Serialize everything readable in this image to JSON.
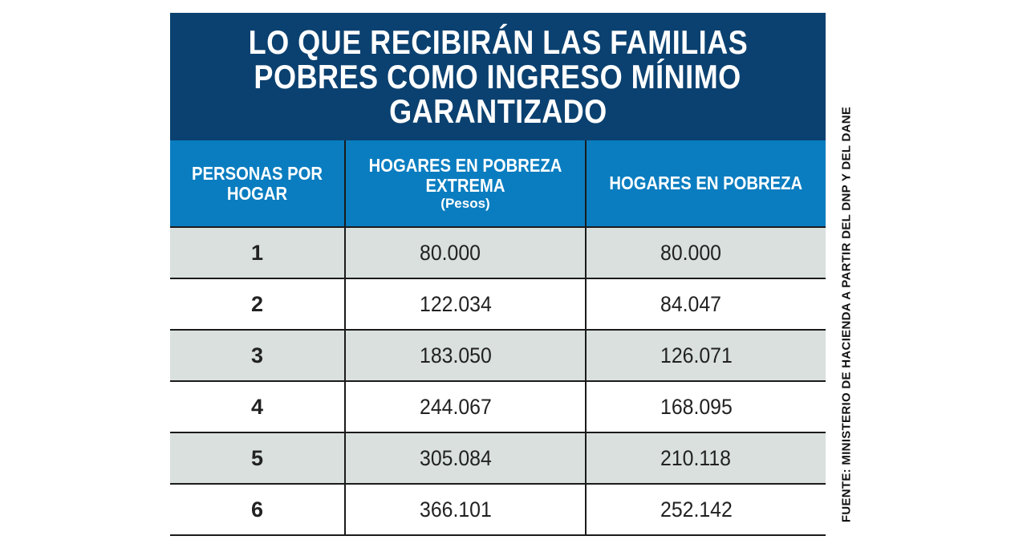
{
  "title": {
    "lines": [
      "LO QUE RECIBIRÁN LAS FAMILIAS",
      "POBRES COMO INGRESO MÍNIMO",
      "GARANTIZADO"
    ]
  },
  "table": {
    "headers": {
      "persons": "PERSONAS POR HOGAR",
      "extreme": "HOGARES EN POBREZA EXTREMA",
      "extreme_unit": "(Pesos)",
      "poverty": "HOGARES EN POBREZA"
    },
    "rows": [
      {
        "persons": "1",
        "extreme": "80.000",
        "poverty": "80.000"
      },
      {
        "persons": "2",
        "extreme": "122.034",
        "poverty": "84.047"
      },
      {
        "persons": "3",
        "extreme": "183.050",
        "poverty": "126.071"
      },
      {
        "persons": "4",
        "extreme": "244.067",
        "poverty": "168.095"
      },
      {
        "persons": "5",
        "extreme": "305.084",
        "poverty": "210.118"
      },
      {
        "persons": "6",
        "extreme": "366.101",
        "poverty": "252.142"
      }
    ]
  },
  "source": "FUENTE: MINISTERIO DE HACIENDA A PARTIR DEL DNP Y DEL DANE",
  "colors": {
    "title_bg": "#0b4170",
    "header_bg": "#0a7dc0",
    "row_shade": "#d9e0dd"
  },
  "chart_data": {
    "type": "table",
    "title": "LO QUE RECIBIRÁN LAS FAMILIAS POBRES COMO INGRESO MÍNIMO GARANTIZADO",
    "columns": [
      "PERSONAS POR HOGAR",
      "HOGARES EN POBREZA EXTREMA (Pesos)",
      "HOGARES EN POBREZA"
    ],
    "categories": [
      1,
      2,
      3,
      4,
      5,
      6
    ],
    "series": [
      {
        "name": "HOGARES EN POBREZA EXTREMA",
        "values": [
          80000,
          122034,
          183050,
          244067,
          305084,
          366101
        ]
      },
      {
        "name": "HOGARES EN POBREZA",
        "values": [
          80000,
          84047,
          126071,
          168095,
          210118,
          252142
        ]
      }
    ],
    "unit": "Pesos",
    "source": "FUENTE: MINISTERIO DE HACIENDA A PARTIR DEL DNP Y DEL DANE"
  }
}
